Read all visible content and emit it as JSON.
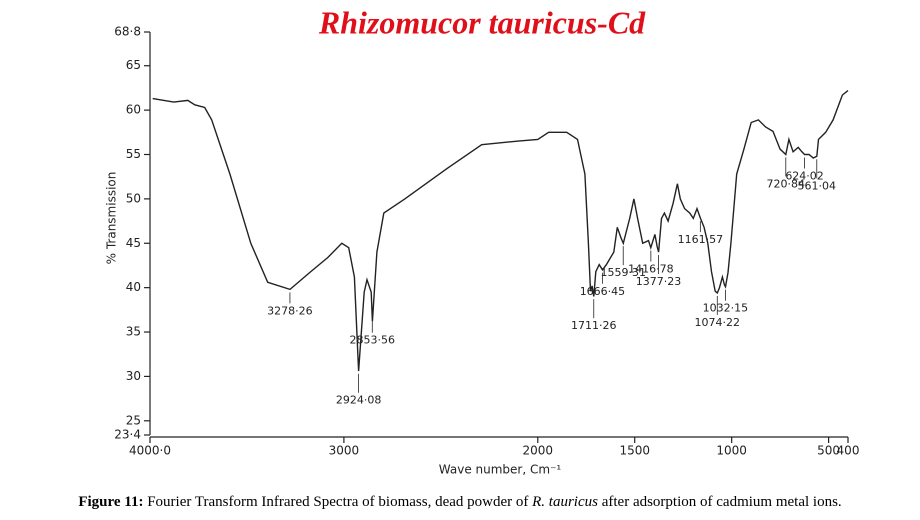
{
  "chart_data": {
    "type": "line",
    "title": "Rhizomucor tauricus-Cd",
    "ylabel": "% Transmission",
    "xlabel": "Wave number, Cm⁻¹",
    "color": "#222222",
    "xlim": [
      4000,
      400
    ],
    "xticks": [
      {
        "value": 4000,
        "label": "4000·0"
      },
      3000,
      2000,
      1500,
      1000,
      500,
      400
    ],
    "ylim": [
      23.4,
      68.8
    ],
    "yticks": [
      {
        "value": 23.4,
        "label": "23·4"
      },
      25,
      30,
      35,
      40,
      45,
      50,
      55,
      60,
      65,
      {
        "value": 68.8,
        "label": "68·8"
      }
    ],
    "x": [
      3986,
      3877,
      3805,
      3769,
      3718,
      3682,
      3588,
      3480,
      3393,
      3278,
      3177,
      3083,
      3011,
      2975,
      2946,
      2924,
      2895,
      2881,
      2859,
      2853,
      2830,
      2794,
      2686,
      2469,
      2289,
      2108,
      2000,
      1944,
      1851,
      1795,
      1757,
      1739,
      1728,
      1720,
      1711,
      1701,
      1683,
      1666,
      1646,
      1608,
      1590,
      1571,
      1559,
      1526,
      1504,
      1485,
      1459,
      1429,
      1417,
      1396,
      1384,
      1377,
      1362,
      1347,
      1328,
      1302,
      1280,
      1265,
      1243,
      1216,
      1198,
      1179,
      1161,
      1142,
      1123,
      1104,
      1085,
      1074,
      1063,
      1048,
      1037,
      1032,
      1019,
      1004,
      974,
      937,
      899,
      862,
      825,
      787,
      750,
      721,
      705,
      683,
      657,
      638,
      624,
      601,
      579,
      561,
      552,
      515,
      477,
      429,
      400
    ],
    "values": [
      61.3,
      60.9,
      61.1,
      60.6,
      60.3,
      58.9,
      52.8,
      45.0,
      40.6,
      39.8,
      41.7,
      43.4,
      45.0,
      44.5,
      41.2,
      30.6,
      39.5,
      40.9,
      39.5,
      36.2,
      44.0,
      48.4,
      50.0,
      53.4,
      56.1,
      56.5,
      56.7,
      57.5,
      57.5,
      56.7,
      52.8,
      45.0,
      39.6,
      40.2,
      39.0,
      41.8,
      42.6,
      42.0,
      42.6,
      44.0,
      46.8,
      45.6,
      45.0,
      47.8,
      50.0,
      47.8,
      45.0,
      45.3,
      44.5,
      46.0,
      44.6,
      44.0,
      47.8,
      48.4,
      47.5,
      49.5,
      51.7,
      50.0,
      48.9,
      48.4,
      47.8,
      48.9,
      47.8,
      46.8,
      45.0,
      41.8,
      39.6,
      39.4,
      40.0,
      41.2,
      40.3,
      40.1,
      41.7,
      45.0,
      52.8,
      55.6,
      58.6,
      58.9,
      58.1,
      57.6,
      55.6,
      55.0,
      56.7,
      55.3,
      55.8,
      55.3,
      55.0,
      55.0,
      54.6,
      54.8,
      56.7,
      57.5,
      58.9,
      61.7,
      62.2
    ],
    "annotations": [
      {
        "value": 3278.26,
        "label": "3278·26"
      },
      {
        "value": 2924.08,
        "label": "2924·08"
      },
      {
        "value": 2853.56,
        "label": "2853·56"
      },
      {
        "value": 1711.26,
        "label": "1711·26"
      },
      {
        "value": 1666.45,
        "label": "1666·45"
      },
      {
        "value": 1559.31,
        "label": "1559·31"
      },
      {
        "value": 1416.78,
        "label": "1416·78"
      },
      {
        "value": 1377.23,
        "label": "1377·23"
      },
      {
        "value": 1161.57,
        "label": "1161·57"
      },
      {
        "value": 1074.22,
        "label": "1074·22"
      },
      {
        "value": 1032.15,
        "label": "1032·15"
      },
      {
        "value": 720.84,
        "label": "720·84"
      },
      {
        "value": 624.02,
        "label": "624·02"
      },
      {
        "value": 561.04,
        "label": "561·04"
      }
    ]
  },
  "caption": {
    "label": "Figure 11:",
    "parts": [
      "Fourier Transform Infrared Spectra of biomass, dead powder of ",
      "R. tauricus",
      " after adsorption of cadmium metal ions."
    ]
  }
}
